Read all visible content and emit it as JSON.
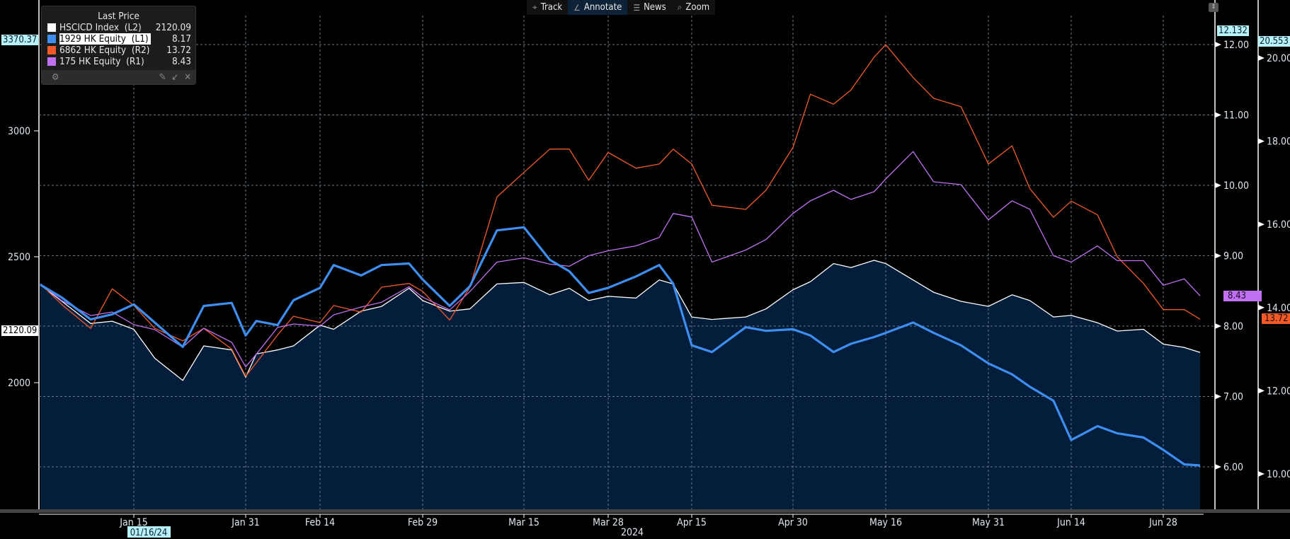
{
  "toolbar": {
    "items": [
      {
        "label": "Track",
        "icon": "crosshair-icon",
        "glyph": "⌖"
      },
      {
        "label": "Annotate",
        "icon": "pencil-icon",
        "glyph": "∠"
      },
      {
        "label": "News",
        "icon": "news-icon",
        "glyph": "☰"
      },
      {
        "label": "Zoom",
        "icon": "magnifier-icon",
        "glyph": "⌕"
      }
    ]
  },
  "legend": {
    "header": "Last Price",
    "entries": [
      {
        "name": "HSCICD Index  (L2)",
        "value": "2120.09",
        "color": "#ffffff"
      },
      {
        "name": "1929 HK Equity  (L1)",
        "value": "8.17",
        "color": "#3d8ef0"
      },
      {
        "name": "6862 HK Equity  (R2)",
        "value": "13.72",
        "color": "#f05a28"
      },
      {
        "name": "175 HK Equity  (R1)",
        "value": "8.43",
        "color": "#c070f0"
      }
    ]
  },
  "tags": {
    "left_max": "3370.37",
    "left_last": "2120.09",
    "r1_max": "12.132",
    "r2_max": "20.553",
    "r1_last": "8.43",
    "r2_last": "13.72"
  },
  "chart_data": {
    "type": "line",
    "x_tick_labels": [
      "Jan 15",
      "Jan 31",
      "Feb 14",
      "Feb 29",
      "Mar 15",
      "Mar 28",
      "Apr 15",
      "Apr 30",
      "May 16",
      "May 31",
      "Jun 14",
      "Jun 28"
    ],
    "x_year_label": "2024",
    "x_cursor_label": "01/16/24",
    "axes": {
      "L2": {
        "ticks": [
          2000,
          2500,
          3000
        ]
      },
      "R1": {
        "ticks": [
          "6.00",
          "7.00",
          "8.00",
          "9.00",
          "10.00",
          "11.00",
          "12.00"
        ]
      },
      "R2": {
        "ticks": [
          "10.00",
          "12.00",
          "14.00",
          "16.00",
          "18.00",
          "20.00"
        ]
      }
    },
    "grid": true,
    "legend_placement": "top-left",
    "x": [
      "2024-01-02",
      "2024-01-05",
      "2024-01-09",
      "2024-01-12",
      "2024-01-15",
      "2024-01-18",
      "2024-01-22",
      "2024-01-25",
      "2024-01-29",
      "2024-01-31",
      "2024-02-02",
      "2024-02-06",
      "2024-02-09",
      "2024-02-14",
      "2024-02-16",
      "2024-02-20",
      "2024-02-23",
      "2024-02-27",
      "2024-02-29",
      "2024-03-04",
      "2024-03-07",
      "2024-03-11",
      "2024-03-15",
      "2024-03-19",
      "2024-03-22",
      "2024-03-25",
      "2024-03-28",
      "2024-04-03",
      "2024-04-08",
      "2024-04-11",
      "2024-04-15",
      "2024-04-18",
      "2024-04-23",
      "2024-04-26",
      "2024-04-30",
      "2024-05-03",
      "2024-05-07",
      "2024-05-10",
      "2024-05-14",
      "2024-05-16",
      "2024-05-20",
      "2024-05-23",
      "2024-05-27",
      "2024-05-31",
      "2024-06-04",
      "2024-06-07",
      "2024-06-11",
      "2024-06-14",
      "2024-06-18",
      "2024-06-21",
      "2024-06-25",
      "2024-06-28",
      "2024-07-02",
      "2024-07-05"
    ],
    "series": [
      {
        "name": "HSCICD Index",
        "axis": "L2",
        "color": "#ffffff",
        "area": true,
        "values": [
          2388,
          2323,
          2235,
          2244,
          2212,
          2097,
          2009,
          2146,
          2130,
          2022,
          2114,
          2130,
          2146,
          2228,
          2212,
          2284,
          2303,
          2375,
          2326,
          2284,
          2293,
          2392,
          2398,
          2349,
          2375,
          2326,
          2343,
          2336,
          2408,
          2392,
          2261,
          2251,
          2261,
          2293,
          2369,
          2401,
          2473,
          2457,
          2486,
          2473,
          2408,
          2359,
          2323,
          2303,
          2349,
          2326,
          2261,
          2267,
          2238,
          2205,
          2212,
          2153,
          2140,
          2120.09
        ]
      },
      {
        "name": "1929 HK Equity",
        "axis": "L1",
        "color": "#3d8ef0",
        "values": [
          11.66,
          11.41,
          10.99,
          11.09,
          11.28,
          10.93,
          10.46,
          11.25,
          11.31,
          10.68,
          10.96,
          10.88,
          11.36,
          11.6,
          12.04,
          11.84,
          12.04,
          12.07,
          11.76,
          11.25,
          11.63,
          12.71,
          12.77,
          12.14,
          11.92,
          11.5,
          11.6,
          11.82,
          12.04,
          11.68,
          10.49,
          10.36,
          10.84,
          10.77,
          10.8,
          10.68,
          10.36,
          10.52,
          10.65,
          10.73,
          10.93,
          10.73,
          10.49,
          10.14,
          9.93,
          9.69,
          9.42,
          8.66,
          8.93,
          8.79,
          8.71,
          8.47,
          8.19,
          8.17
        ]
      },
      {
        "name": "6862 HK Equity",
        "axis": "R2",
        "color": "#f05a28",
        "values": [
          14.57,
          14.07,
          13.5,
          14.45,
          14.05,
          13.5,
          13.2,
          13.5,
          13.0,
          12.35,
          12.67,
          13.34,
          13.79,
          13.64,
          14.05,
          13.89,
          14.49,
          14.58,
          14.39,
          13.7,
          14.49,
          16.66,
          17.25,
          17.81,
          17.81,
          17.06,
          17.73,
          17.35,
          17.45,
          17.81,
          17.45,
          16.46,
          16.36,
          16.82,
          17.85,
          19.13,
          18.89,
          19.23,
          20.02,
          20.32,
          19.53,
          19.03,
          18.83,
          17.45,
          17.89,
          16.86,
          16.17,
          16.56,
          16.23,
          15.22,
          14.58,
          13.95,
          13.95,
          13.72
        ]
      },
      {
        "name": "175 HK Equity",
        "axis": "R1",
        "color": "#c070f0",
        "values": [
          8.6,
          8.36,
          8.15,
          8.2,
          8.02,
          7.95,
          7.7,
          7.97,
          7.77,
          7.42,
          7.6,
          7.98,
          8.03,
          8.0,
          8.16,
          8.27,
          8.34,
          8.56,
          8.41,
          8.23,
          8.49,
          8.91,
          8.97,
          8.88,
          8.85,
          9.0,
          9.07,
          9.14,
          9.26,
          9.6,
          9.55,
          8.91,
          9.08,
          9.23,
          9.6,
          9.78,
          9.93,
          9.8,
          9.91,
          10.09,
          10.48,
          10.05,
          10.01,
          9.51,
          9.78,
          9.66,
          9.0,
          8.91,
          9.14,
          8.93,
          8.93,
          8.58,
          8.67,
          8.43
        ]
      }
    ]
  }
}
